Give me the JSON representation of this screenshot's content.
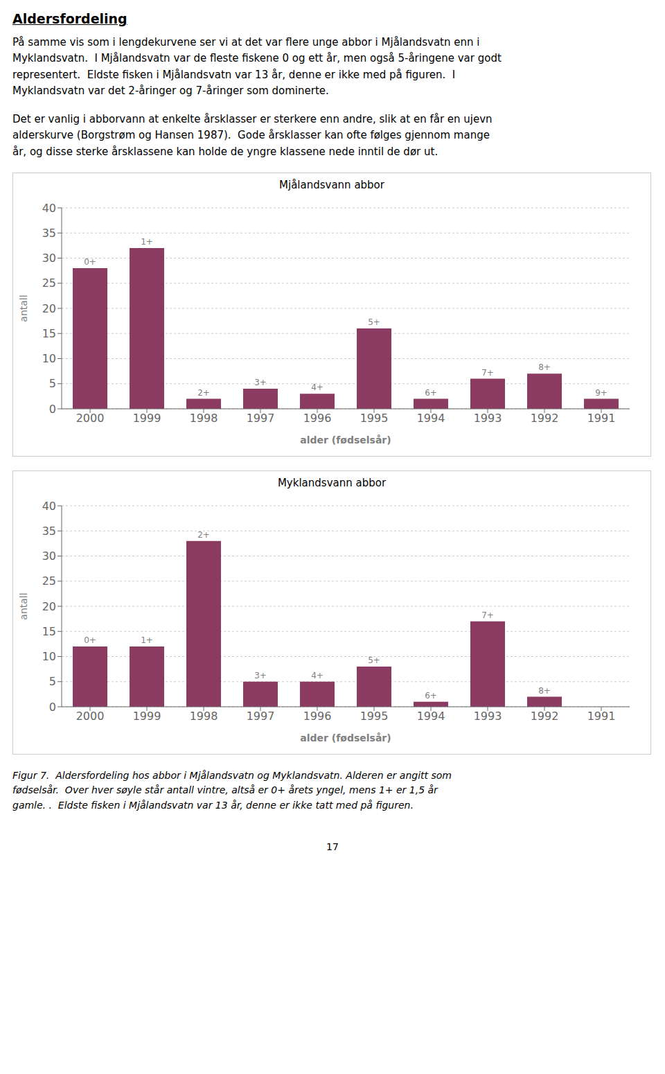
{
  "title": "Aldersfordeling",
  "paragraphs": [
    [
      "På samme vis som i lengdekurvene ser vi at det var flere unge abbor i Mjålandsvatn enn i",
      "Myklandsvatn.  I Mjålandsvatn var de fleste fiskene 0 og ett år, men også 5-åringene var godt",
      "representert.  Eldste fisken i Mjålandsvatn var 13 år, denne er ikke med på figuren.  I",
      "Myklandsvatn var det 2-åringer og 7-åringer som dominerte."
    ],
    [
      "Det er vanlig i abborvann at enkelte årsklasser er sterkere enn andre, slik at en får en ujevn",
      "alderskurve (Borgstrøm og Hansen 1987).  Gode årsklasser kan ofte følges gjennom mange",
      "år, og disse sterke årsklassene kan holde de yngre klassene nede inntil de dør ut."
    ]
  ],
  "caption": [
    "Figur 7.  Aldersfordeling hos abbor i Mjålandsvatn og Myklandsvatn. Alderen er angitt som",
    "fødselsår.  Over hver søyle står antall vintre, altså er 0+ årets yngel, mens 1+ er 1,5 år",
    "gamle. .  Eldste fisken i Mjålandsvatn var 13 år, denne er ikke tatt med på figuren."
  ],
  "page_number": "17",
  "chart_data": [
    {
      "type": "bar",
      "title": "Mjålandsvann abbor",
      "categories": [
        "2000",
        "1999",
        "1998",
        "1997",
        "1996",
        "1995",
        "1994",
        "1993",
        "1992",
        "1991"
      ],
      "values": [
        28,
        32,
        2,
        4,
        3,
        16,
        2,
        6,
        7,
        2
      ],
      "annotations": [
        "0+",
        "1+",
        "2+",
        "3+",
        "4+",
        "5+",
        "6+",
        "7+",
        "8+",
        "9+"
      ],
      "xlabel": "alder (fødselsår)",
      "ylabel": "antall",
      "ylim": [
        0,
        40
      ],
      "yticks": [
        0,
        5,
        10,
        15,
        20,
        25,
        30,
        35,
        40
      ],
      "color": "#8B3A62",
      "grid": true
    },
    {
      "type": "bar",
      "title": "Myklandsvann abbor",
      "categories": [
        "2000",
        "1999",
        "1998",
        "1997",
        "1996",
        "1995",
        "1994",
        "1993",
        "1992",
        "1991"
      ],
      "values": [
        12,
        12,
        33,
        5,
        5,
        8,
        1,
        17,
        2,
        0
      ],
      "annotations": [
        "0+",
        "1+",
        "2+",
        "3+",
        "4+",
        "5+",
        "6+",
        "7+",
        "8+",
        null
      ],
      "xlabel": "alder (fødselsår)",
      "ylabel": "antall",
      "ylim": [
        0,
        40
      ],
      "yticks": [
        0,
        5,
        10,
        15,
        20,
        25,
        30,
        35,
        40
      ],
      "color": "#8B3A62",
      "grid": true
    }
  ]
}
